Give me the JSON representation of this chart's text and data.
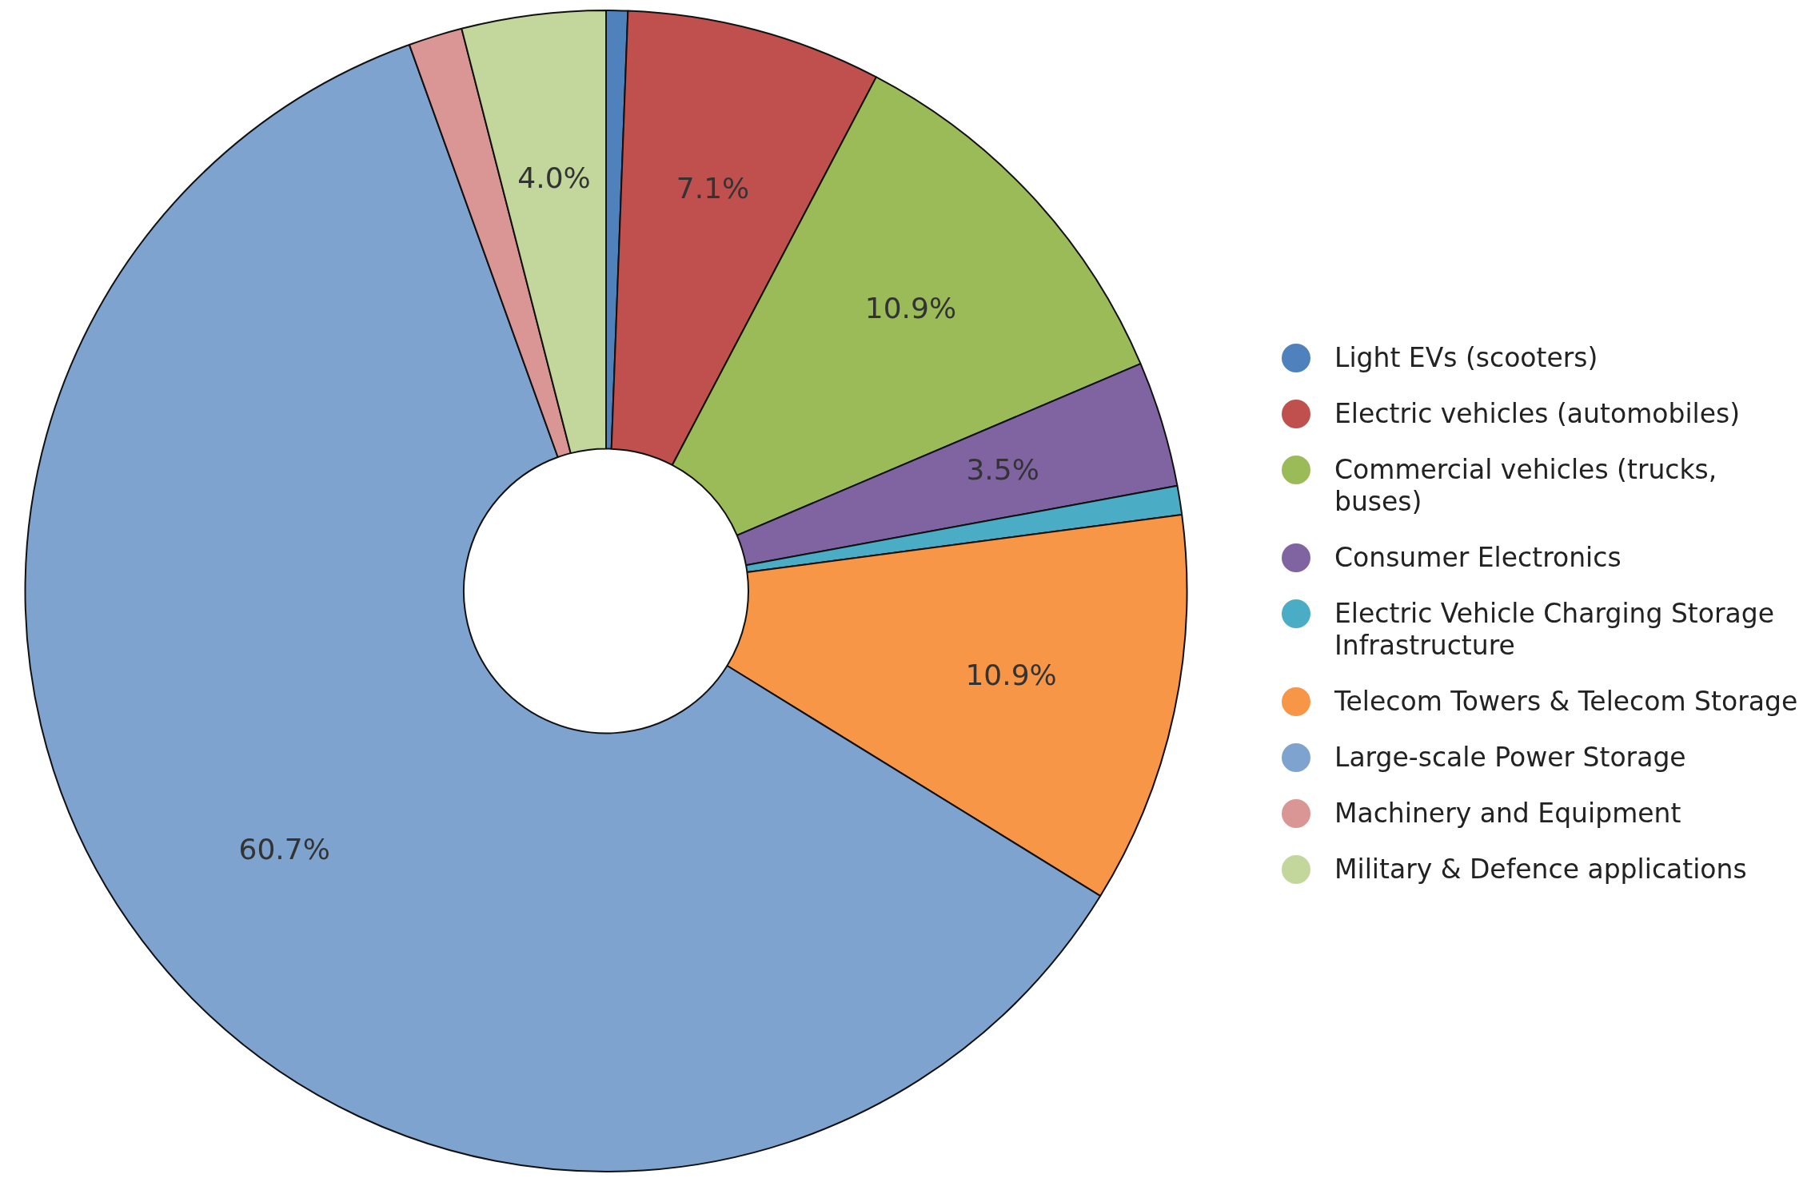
{
  "chart_data": {
    "type": "donut",
    "categories": [
      "Light EVs (scooters)",
      "Electric vehicles (automobiles)",
      "Commercial vehicles (trucks, buses)",
      "Consumer Electronics",
      "Electric Vehicle Charging Storage Infrastructure",
      "Telecom Towers & Telecom Storage",
      "Large-scale Power Storage",
      "Machinery and Equipment",
      "Military & Defence applications"
    ],
    "values": [
      0.6,
      7.1,
      10.9,
      3.5,
      0.8,
      10.9,
      60.7,
      1.5,
      4.0
    ],
    "colors": [
      "#4f81bd",
      "#c0504d",
      "#9bbb59",
      "#8064a2",
      "#4bacc6",
      "#f79646",
      "#7fa3cf",
      "#d99694",
      "#c3d69b"
    ],
    "value_labels": [
      null,
      "7.1%",
      "10.9%",
      "3.5%",
      null,
      "10.9%",
      "60.7%",
      null,
      "4.0%"
    ],
    "legend": "right"
  }
}
